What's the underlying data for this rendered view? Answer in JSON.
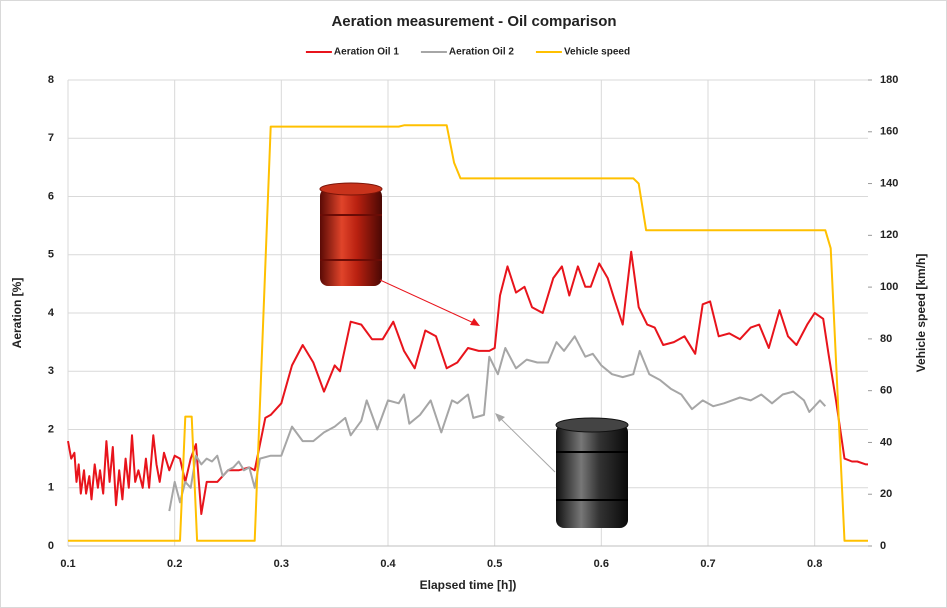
{
  "chart_data": {
    "type": "line",
    "title": "Aeration measurement - Oil comparison",
    "xlabel": "Elapsed time [h])",
    "ylabel": "Aeration [%]",
    "y2label": "Vehicle speed [km/h]",
    "xlim": [
      0.1,
      0.85
    ],
    "xticks": [
      0.1,
      0.2,
      0.3,
      0.4,
      0.5,
      0.6,
      0.7,
      0.8
    ],
    "ylim": [
      0,
      8
    ],
    "yticks": [
      0,
      1,
      2,
      3,
      4,
      5,
      6,
      7,
      8
    ],
    "y2lim": [
      0,
      180
    ],
    "y2ticks": [
      0,
      20,
      40,
      60,
      80,
      100,
      120,
      140,
      160,
      180
    ],
    "grid": true,
    "legend": "top",
    "series": [
      {
        "name": "Aeration Oil 1",
        "color": "#e8141c",
        "x": [
          0.1,
          0.103,
          0.106,
          0.108,
          0.11,
          0.112,
          0.115,
          0.117,
          0.12,
          0.122,
          0.125,
          0.128,
          0.13,
          0.133,
          0.136,
          0.139,
          0.142,
          0.145,
          0.148,
          0.151,
          0.154,
          0.157,
          0.16,
          0.163,
          0.166,
          0.17,
          0.173,
          0.176,
          0.18,
          0.183,
          0.186,
          0.19,
          0.195,
          0.2,
          0.205,
          0.21,
          0.215,
          0.22,
          0.225,
          0.23,
          0.24,
          0.25,
          0.26,
          0.27,
          0.275,
          0.285,
          0.29,
          0.3,
          0.31,
          0.32,
          0.33,
          0.34,
          0.35,
          0.355,
          0.365,
          0.375,
          0.385,
          0.395,
          0.405,
          0.415,
          0.425,
          0.435,
          0.445,
          0.455,
          0.465,
          0.475,
          0.485,
          0.495,
          0.5,
          0.505,
          0.512,
          0.52,
          0.528,
          0.535,
          0.545,
          0.555,
          0.563,
          0.57,
          0.578,
          0.585,
          0.59,
          0.598,
          0.606,
          0.612,
          0.62,
          0.628,
          0.635,
          0.643,
          0.65,
          0.658,
          0.668,
          0.678,
          0.688,
          0.695,
          0.702,
          0.71,
          0.72,
          0.73,
          0.74,
          0.748,
          0.757,
          0.767,
          0.775,
          0.783,
          0.793,
          0.8,
          0.808,
          0.813,
          0.82,
          0.828,
          0.835,
          0.84,
          0.848,
          0.85
        ],
        "values": [
          1.8,
          1.5,
          1.6,
          1.1,
          1.4,
          0.9,
          1.3,
          0.9,
          1.2,
          0.8,
          1.4,
          1.0,
          1.3,
          0.9,
          1.8,
          1.1,
          1.7,
          0.7,
          1.3,
          0.8,
          1.5,
          1.0,
          1.9,
          1.1,
          1.3,
          1.0,
          1.5,
          1.0,
          1.9,
          1.4,
          1.1,
          1.6,
          1.3,
          1.55,
          1.5,
          1.1,
          1.5,
          1.75,
          0.55,
          1.1,
          1.1,
          1.3,
          1.3,
          1.35,
          1.3,
          2.2,
          2.25,
          2.45,
          3.1,
          3.45,
          3.15,
          2.65,
          3.1,
          3.0,
          3.85,
          3.8,
          3.55,
          3.55,
          3.85,
          3.35,
          3.05,
          3.7,
          3.6,
          3.05,
          3.15,
          3.4,
          3.35,
          3.35,
          3.4,
          4.3,
          4.8,
          4.35,
          4.45,
          4.1,
          4.0,
          4.6,
          4.8,
          4.3,
          4.8,
          4.45,
          4.45,
          4.85,
          4.6,
          4.25,
          3.8,
          5.05,
          4.1,
          3.8,
          3.75,
          3.45,
          3.5,
          3.6,
          3.3,
          4.15,
          4.2,
          3.6,
          3.65,
          3.55,
          3.75,
          3.8,
          3.4,
          4.05,
          3.6,
          3.45,
          3.8,
          4.0,
          3.9,
          3.3,
          2.5,
          1.5,
          1.45,
          1.45,
          1.4,
          1.4
        ]
      },
      {
        "name": "Aeration Oil 2",
        "color": "#a6a6a6",
        "x": [
          0.195,
          0.2,
          0.205,
          0.21,
          0.215,
          0.22,
          0.225,
          0.23,
          0.235,
          0.24,
          0.245,
          0.25,
          0.255,
          0.26,
          0.265,
          0.27,
          0.275,
          0.28,
          0.29,
          0.3,
          0.31,
          0.32,
          0.33,
          0.34,
          0.35,
          0.36,
          0.365,
          0.375,
          0.38,
          0.39,
          0.4,
          0.41,
          0.415,
          0.42,
          0.43,
          0.44,
          0.45,
          0.46,
          0.465,
          0.475,
          0.48,
          0.49,
          0.495,
          0.503,
          0.51,
          0.52,
          0.53,
          0.54,
          0.55,
          0.558,
          0.565,
          0.575,
          0.585,
          0.592,
          0.6,
          0.61,
          0.62,
          0.63,
          0.636,
          0.645,
          0.655,
          0.665,
          0.675,
          0.685,
          0.695,
          0.705,
          0.715,
          0.73,
          0.74,
          0.75,
          0.76,
          0.77,
          0.78,
          0.79,
          0.795,
          0.805,
          0.81
        ],
        "values": [
          0.6,
          1.1,
          0.75,
          1.1,
          1.0,
          1.55,
          1.4,
          1.5,
          1.45,
          1.55,
          1.2,
          1.3,
          1.35,
          1.45,
          1.3,
          1.35,
          1.0,
          1.5,
          1.55,
          1.55,
          2.05,
          1.8,
          1.8,
          1.95,
          2.05,
          2.2,
          1.9,
          2.15,
          2.5,
          2.0,
          2.5,
          2.45,
          2.6,
          2.1,
          2.25,
          2.5,
          1.95,
          2.5,
          2.45,
          2.6,
          2.2,
          2.25,
          3.25,
          2.95,
          3.4,
          3.05,
          3.2,
          3.15,
          3.15,
          3.5,
          3.35,
          3.6,
          3.25,
          3.3,
          3.1,
          2.95,
          2.9,
          2.95,
          3.35,
          2.95,
          2.85,
          2.7,
          2.6,
          2.35,
          2.5,
          2.4,
          2.45,
          2.55,
          2.5,
          2.6,
          2.45,
          2.6,
          2.65,
          2.5,
          2.3,
          2.5,
          2.4
        ]
      },
      {
        "name": "Vehicle speed",
        "color": "#ffc000",
        "axis": "y2",
        "x": [
          0.1,
          0.205,
          0.21,
          0.216,
          0.221,
          0.275,
          0.29,
          0.41,
          0.415,
          0.455,
          0.462,
          0.468,
          0.63,
          0.635,
          0.642,
          0.81,
          0.815,
          0.828,
          0.85
        ],
        "values": [
          2,
          2,
          50,
          50,
          2,
          2,
          162,
          162,
          162.5,
          162.5,
          148,
          142,
          142,
          140,
          122,
          122,
          115,
          2,
          2
        ]
      }
    ]
  }
}
